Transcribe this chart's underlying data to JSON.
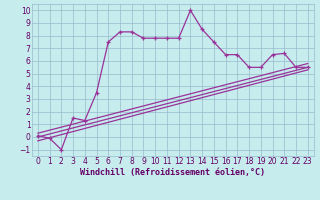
{
  "xlabel": "Windchill (Refroidissement éolien,°C)",
  "bg_color": "#c6ecee",
  "line_color": "#993399",
  "grid_color": "#99bbcc",
  "spine_color": "#99bbcc",
  "xlim": [
    -0.5,
    23.5
  ],
  "ylim": [
    -1.5,
    10.5
  ],
  "xticks": [
    0,
    1,
    2,
    3,
    4,
    5,
    6,
    7,
    8,
    9,
    10,
    11,
    12,
    13,
    14,
    15,
    16,
    17,
    18,
    19,
    20,
    21,
    22,
    23
  ],
  "yticks": [
    -1,
    0,
    1,
    2,
    3,
    4,
    5,
    6,
    7,
    8,
    9,
    10
  ],
  "line1_x": [
    0,
    1,
    2,
    3,
    4,
    5,
    6,
    7,
    8,
    9,
    10,
    11,
    12,
    13,
    14,
    15,
    16,
    17,
    18,
    19,
    20,
    21,
    22,
    23
  ],
  "line1_y": [
    0.1,
    -0.1,
    -1.0,
    1.5,
    1.3,
    3.5,
    7.5,
    8.3,
    8.3,
    7.8,
    7.8,
    7.8,
    7.8,
    10.0,
    8.5,
    7.5,
    6.5,
    6.5,
    5.5,
    5.5,
    6.5,
    6.6,
    5.5,
    5.5
  ],
  "line2_x": [
    0,
    23
  ],
  "line2_y": [
    -0.3,
    5.3
  ],
  "line3_x": [
    0,
    23
  ],
  "line3_y": [
    -0.0,
    5.5
  ],
  "line4_x": [
    0,
    23
  ],
  "line4_y": [
    0.3,
    5.8
  ],
  "tick_color": "#660066",
  "label_fontsize": 5.5,
  "xlabel_fontsize": 6.0
}
